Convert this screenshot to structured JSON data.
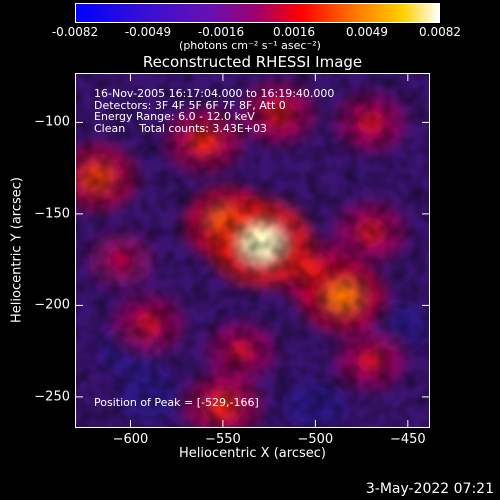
{
  "colorbar": {
    "tick_labels": [
      "-0.0082",
      "-0.0049",
      "-0.0016",
      "0.0016",
      "0.0049",
      "0.0082"
    ],
    "units": "(photons cm⁻² s⁻¹ asec⁻²)"
  },
  "chart_data": {
    "type": "heatmap",
    "title": "Reconstructed RHESSI Image",
    "xlabel": "Heliocentric X (arcsec)",
    "ylabel": "Heliocentric Y (arcsec)",
    "xlim": [
      -630,
      -438
    ],
    "ylim": [
      -267,
      -73
    ],
    "x_ticks": [
      -600,
      -550,
      -500,
      -450
    ],
    "y_ticks": [
      -100,
      -150,
      -200,
      -250
    ],
    "color_range": [
      -0.0082,
      0.0082
    ],
    "colormap": [
      "#0000ff",
      "#6a10b0",
      "#b0006a",
      "#ff0000",
      "#ff8000",
      "#ffe000",
      "#ffffe0"
    ],
    "sources": [
      {
        "x": -529,
        "y": -166,
        "intensity": 0.0082
      },
      {
        "x": -547,
        "y": -155,
        "intensity": 0.0058
      },
      {
        "x": -485,
        "y": -195,
        "intensity": 0.0055
      },
      {
        "x": -500,
        "y": -182,
        "intensity": 0.004
      },
      {
        "x": -618,
        "y": -130,
        "intensity": 0.0045
      },
      {
        "x": -560,
        "y": -110,
        "intensity": 0.004
      },
      {
        "x": -520,
        "y": -95,
        "intensity": 0.0035
      },
      {
        "x": -470,
        "y": -100,
        "intensity": 0.003
      },
      {
        "x": -470,
        "y": -160,
        "intensity": 0.0032
      },
      {
        "x": -590,
        "y": -210,
        "intensity": 0.003
      },
      {
        "x": -540,
        "y": -225,
        "intensity": 0.0028
      },
      {
        "x": -550,
        "y": -255,
        "intensity": 0.004
      },
      {
        "x": -470,
        "y": -230,
        "intensity": 0.003
      },
      {
        "x": -605,
        "y": -175,
        "intensity": 0.0022
      }
    ],
    "dark_regions": [
      {
        "x": -600,
        "y": -225
      },
      {
        "x": -455,
        "y": -212
      },
      {
        "x": -590,
        "y": -250
      },
      {
        "x": -500,
        "y": -255
      }
    ],
    "annotations": {
      "time": "16-Nov-2005 16:17:04.000 to 16:19:40.000",
      "detectors": "Detectors: 3F 4F 5F 6F 7F 8F, Att 0",
      "energy": "Energy Range: 6.0 - 12.0 keV",
      "clean": "Clean    Total counts: 3.43E+03",
      "peak": "Position of Peak = [-529,-166]"
    }
  },
  "footer_timestamp": "3-May-2022 07:21"
}
